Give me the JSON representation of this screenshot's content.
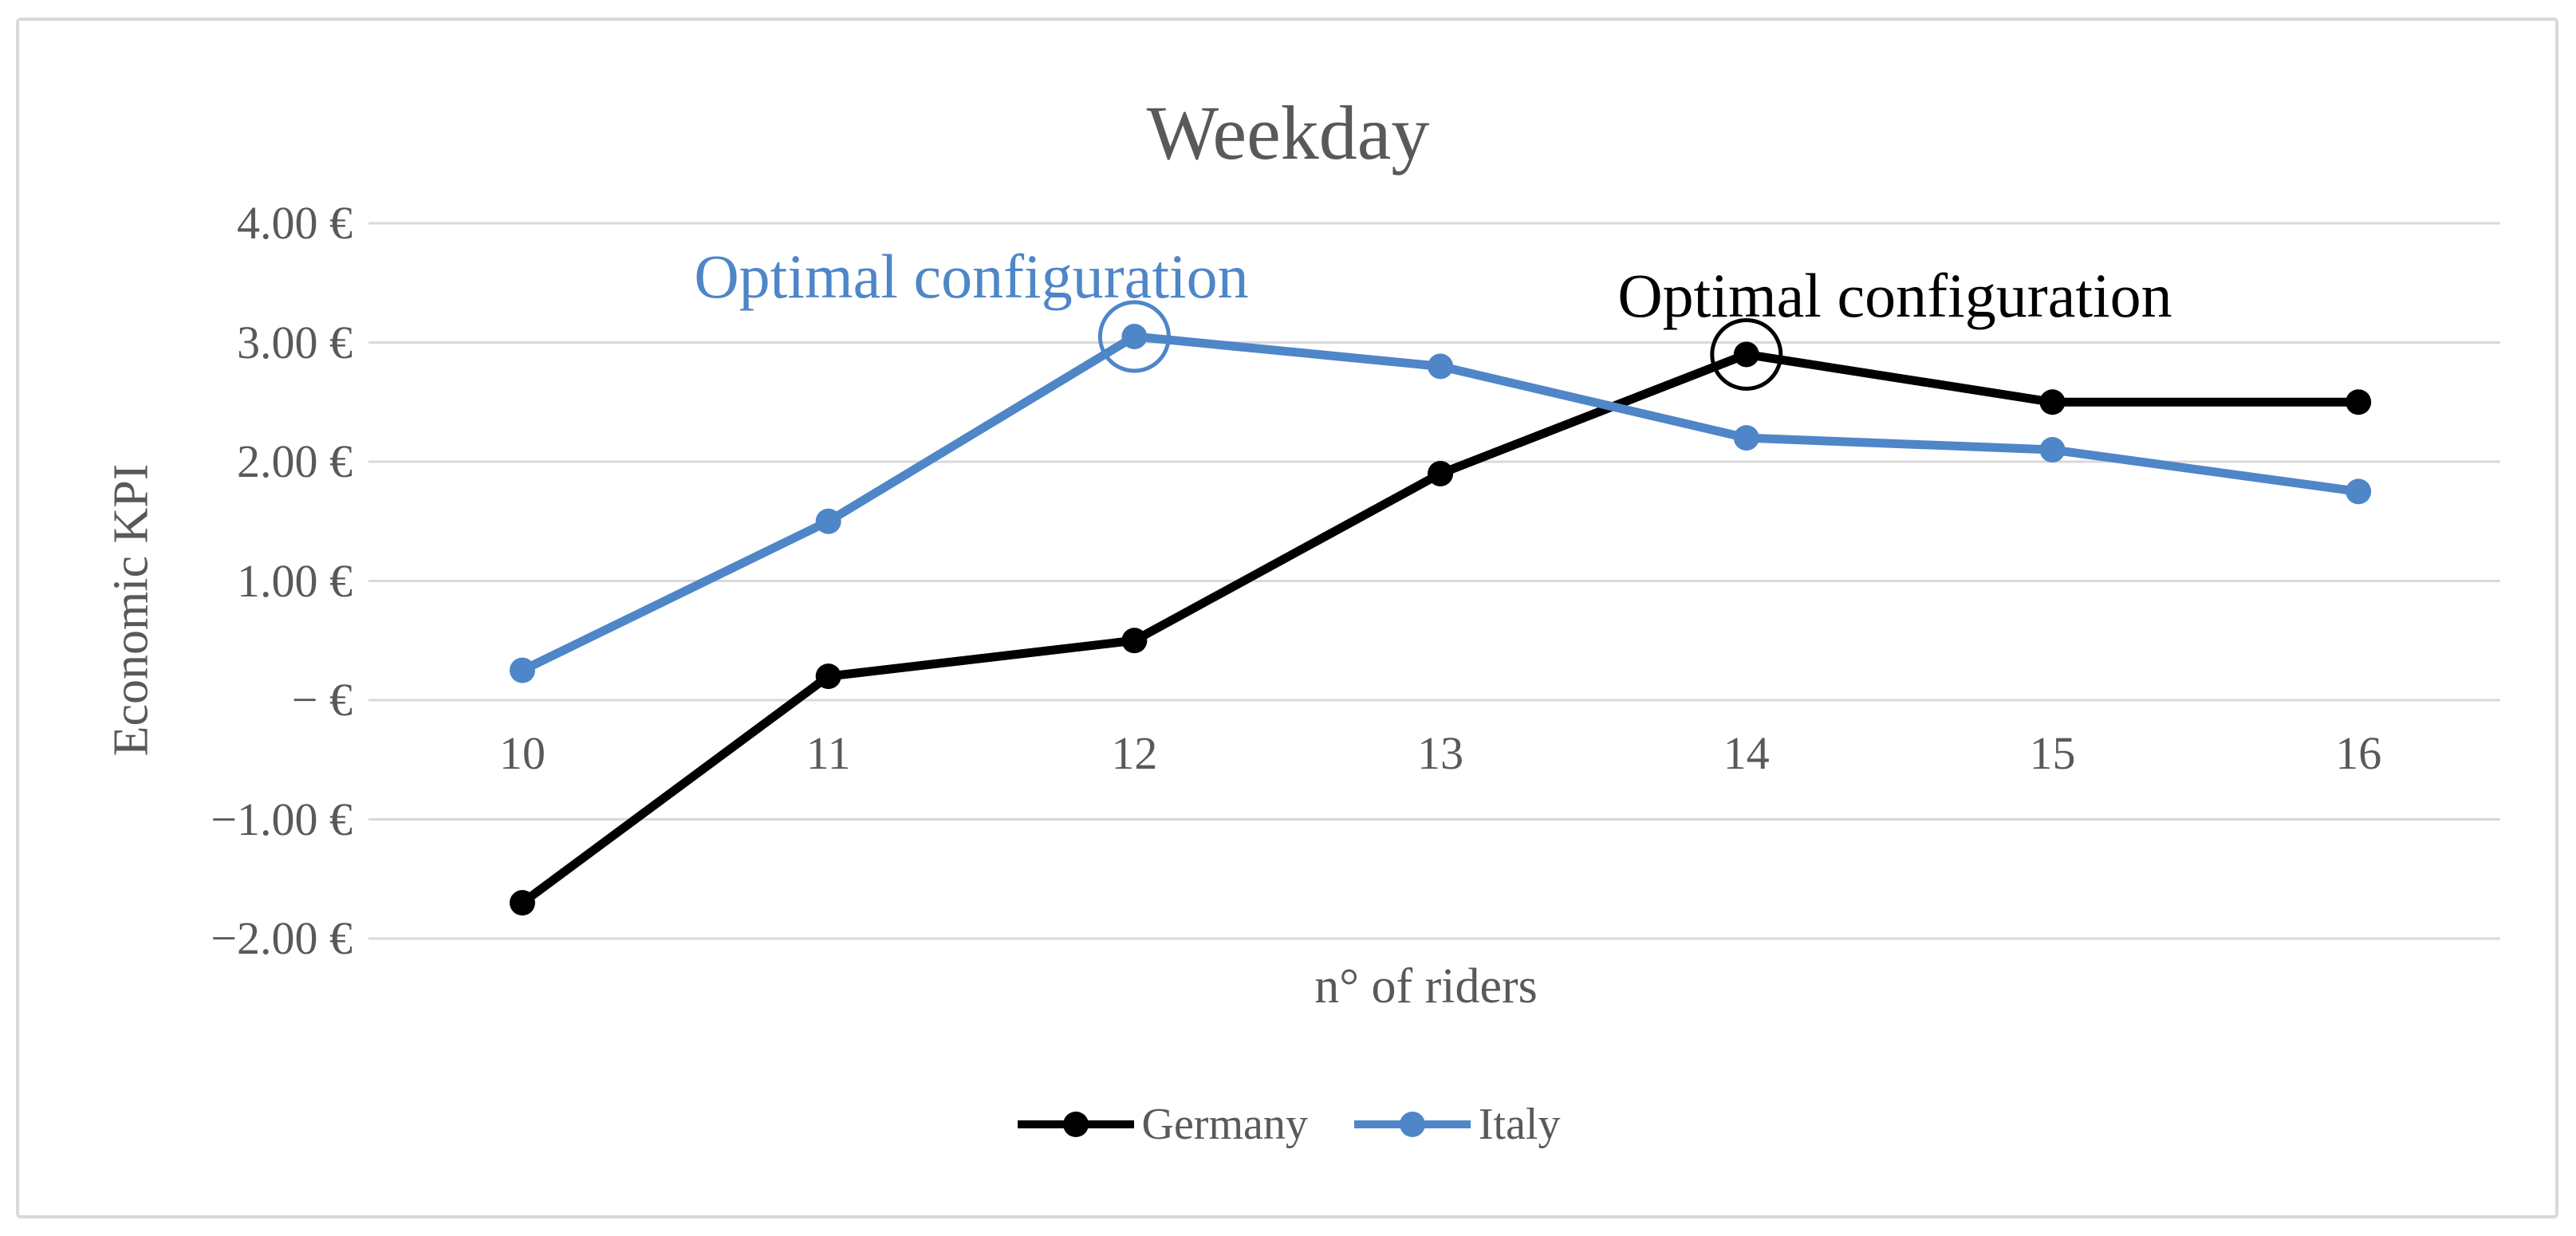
{
  "figure": {
    "background": "#ffffff",
    "border_color": "#d9d9d9",
    "gridline_color": "#d9d9d9",
    "text_color": "#595959"
  },
  "chart_data": {
    "type": "line",
    "title": "Weekday",
    "xlabel": "n° of riders",
    "ylabel": "Economic KPI",
    "categories": [
      "10",
      "11",
      "12",
      "13",
      "14",
      "15",
      "16"
    ],
    "series": [
      {
        "name": "Germany",
        "color": "#000000",
        "values": [
          -1.7,
          0.2,
          0.5,
          1.9,
          2.9,
          2.5,
          2.5
        ]
      },
      {
        "name": "Italy",
        "color": "#4e86c8",
        "values": [
          0.25,
          1.5,
          3.05,
          2.8,
          2.2,
          2.1,
          1.75
        ]
      }
    ],
    "y_ticks": [
      {
        "label": "4.00 €",
        "value": 4
      },
      {
        "label": "3.00 €",
        "value": 3
      },
      {
        "label": "2.00 €",
        "value": 2
      },
      {
        "label": "1.00 €",
        "value": 1
      },
      {
        "label": "−   €",
        "value": 0
      },
      {
        "label": "−1.00 €",
        "value": -1
      },
      {
        "label": "−2.00 €",
        "value": -2
      }
    ],
    "ylim": [
      -2,
      4
    ],
    "grid": "horizontal",
    "legend_position": "bottom",
    "annotations": [
      {
        "text": "Optimal configuration",
        "series": "Italy",
        "category": "12",
        "color": "#4e86c8"
      },
      {
        "text": "Optimal configuration",
        "series": "Germany",
        "category": "14",
        "color": "#000000"
      }
    ]
  }
}
